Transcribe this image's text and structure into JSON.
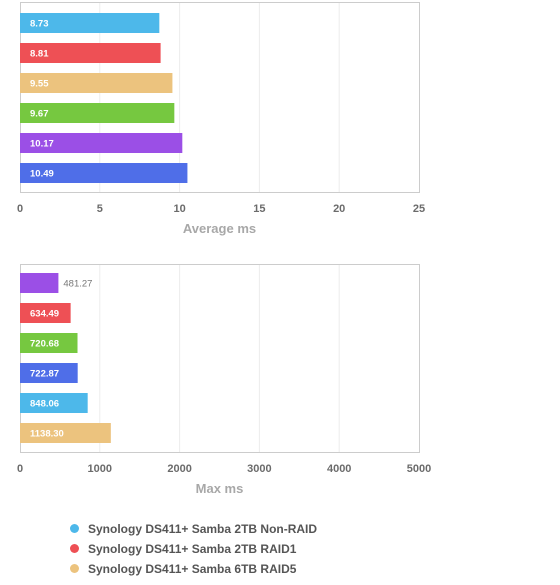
{
  "chart_data": [
    {
      "type": "bar",
      "orientation": "horizontal",
      "xlabel": "Average ms",
      "xlim": [
        0,
        25
      ],
      "xticks": [
        "0",
        "5",
        "10",
        "15",
        "20",
        "25"
      ],
      "grid": true,
      "bars": [
        {
          "label": "8.73",
          "value": 8.73,
          "color": "#4db8ea"
        },
        {
          "label": "8.81",
          "value": 8.81,
          "color": "#ee5055"
        },
        {
          "label": "9.55",
          "value": 9.55,
          "color": "#ecc37e"
        },
        {
          "label": "9.67",
          "value": 9.67,
          "color": "#76c840"
        },
        {
          "label": "10.17",
          "value": 10.17,
          "color": "#9b4fe6"
        },
        {
          "label": "10.49",
          "value": 10.49,
          "color": "#4f6ee8"
        }
      ]
    },
    {
      "type": "bar",
      "orientation": "horizontal",
      "xlabel": "Max ms",
      "xlim": [
        0,
        5000
      ],
      "xticks": [
        "0",
        "1000",
        "2000",
        "3000",
        "4000",
        "5000"
      ],
      "grid": true,
      "bars": [
        {
          "label": "481.27",
          "value": 481.27,
          "color": "#9b4fe6"
        },
        {
          "label": "634.49",
          "value": 634.49,
          "color": "#ee5055"
        },
        {
          "label": "720.68",
          "value": 720.68,
          "color": "#76c840"
        },
        {
          "label": "722.87",
          "value": 722.87,
          "color": "#4f6ee8"
        },
        {
          "label": "848.06",
          "value": 848.06,
          "color": "#4db8ea"
        },
        {
          "label": "1138.30",
          "value": 1138.3,
          "color": "#ecc37e"
        }
      ]
    }
  ],
  "legend": [
    {
      "label": "Synology DS411+ Samba 2TB Non-RAID",
      "color": "#4db8ea"
    },
    {
      "label": "Synology DS411+ Samba 2TB RAID1",
      "color": "#ee5055"
    },
    {
      "label": "Synology DS411+ Samba 6TB RAID5",
      "color": "#ecc37e"
    }
  ]
}
